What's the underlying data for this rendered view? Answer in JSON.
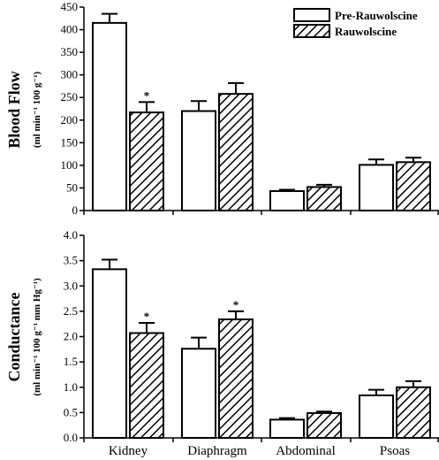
{
  "chart_data": [
    {
      "type": "bar",
      "ylabel_main": "Blood Flow",
      "ylabel_unit": "(ml min⁻¹ 100 g⁻¹)",
      "ylim": [
        0,
        450
      ],
      "yticks": [
        0,
        50,
        100,
        150,
        200,
        250,
        300,
        350,
        400,
        450
      ],
      "ytick_labels": [
        "0",
        "50",
        "100",
        "150",
        "200",
        "250",
        "300",
        "350",
        "400",
        "450"
      ],
      "categories": [
        "Kidney",
        "Diaphragm",
        "Abdominal",
        "Psoas"
      ],
      "series": [
        {
          "name": "Pre-Rauwolscine",
          "fill": "open",
          "values": [
            415,
            220,
            43,
            101
          ],
          "errors": [
            20,
            22,
            3,
            12
          ]
        },
        {
          "name": "Rauwolscine",
          "fill": "hatched",
          "values": [
            217,
            258,
            52,
            107
          ],
          "errors": [
            23,
            24,
            5,
            10
          ]
        }
      ],
      "significance": [
        {
          "category": "Kidney",
          "series": "Rauwolscine",
          "mark": "*"
        }
      ],
      "legend": {
        "placement": "top-right"
      }
    },
    {
      "type": "bar",
      "ylabel_main": "Conductance",
      "ylabel_unit": "(ml min⁻¹ 100 g⁻¹ mm Hg⁻¹)",
      "ylim": [
        0,
        4.0
      ],
      "yticks": [
        0,
        0.5,
        1.0,
        1.5,
        2.0,
        2.5,
        3.0,
        3.5,
        4.0
      ],
      "ytick_labels": [
        "0.0",
        "0.5",
        "1.0",
        "1.5",
        "2.0",
        "2.5",
        "3.0",
        "3.5",
        "4.0"
      ],
      "categories": [
        "Kidney",
        "Diaphragm",
        "Abdominal",
        "Psoas"
      ],
      "series": [
        {
          "name": "Pre-Rauwolscine",
          "fill": "open",
          "values": [
            3.33,
            1.76,
            0.36,
            0.84
          ],
          "errors": [
            0.19,
            0.22,
            0.03,
            0.11
          ]
        },
        {
          "name": "Rauwolscine",
          "fill": "hatched",
          "values": [
            2.07,
            2.34,
            0.49,
            1.0
          ],
          "errors": [
            0.2,
            0.16,
            0.03,
            0.12
          ]
        }
      ],
      "significance": [
        {
          "category": "Kidney",
          "series": "Rauwolscine",
          "mark": "*"
        },
        {
          "category": "Diaphragm",
          "series": "Rauwolscine",
          "mark": "*"
        }
      ],
      "legend": null
    }
  ]
}
